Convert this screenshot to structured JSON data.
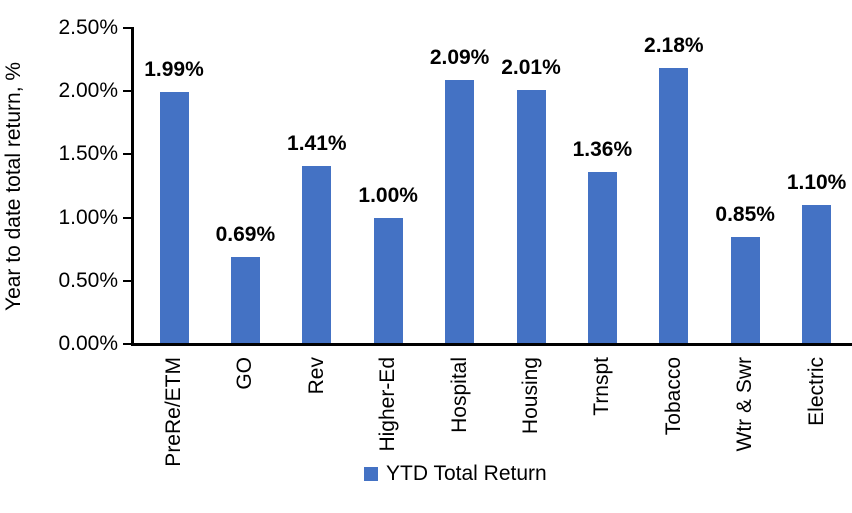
{
  "chart_data": {
    "type": "bar",
    "title": "",
    "ylabel": "Year to date total return, %",
    "xlabel": "",
    "categories": [
      "PreRe/ETM",
      "GO",
      "Rev",
      "Higher-Ed",
      "Hospital",
      "Housing",
      "Trnspt",
      "Tobacco",
      "Wtr & Swr",
      "Electric"
    ],
    "series": [
      {
        "name": "YTD Total Return",
        "values": [
          1.99,
          0.69,
          1.41,
          1.0,
          2.09,
          2.01,
          1.36,
          2.18,
          0.85,
          1.1
        ],
        "color": "#4472C4"
      }
    ],
    "data_labels": [
      "1.99%",
      "0.69%",
      "1.41%",
      "1.00%",
      "2.09%",
      "2.01%",
      "1.36%",
      "2.18%",
      "0.85%",
      "1.10%"
    ],
    "y_ticks": [
      {
        "value": 2.5,
        "label": "2.50%"
      },
      {
        "value": 2.0,
        "label": "2.00%"
      },
      {
        "value": 1.5,
        "label": "1.50%"
      },
      {
        "value": 1.0,
        "label": "1.00%"
      },
      {
        "value": 0.5,
        "label": "0.50%"
      },
      {
        "value": 0.0,
        "label": "0.00%"
      }
    ],
    "ylim": [
      0,
      2.5
    ],
    "grid": false,
    "legend_position": "bottom",
    "legend": [
      "YTD Total Return"
    ]
  },
  "colors": {
    "bar": "#4472C4",
    "axis": "#000000",
    "text": "#000000",
    "background": "#FFFFFF"
  }
}
